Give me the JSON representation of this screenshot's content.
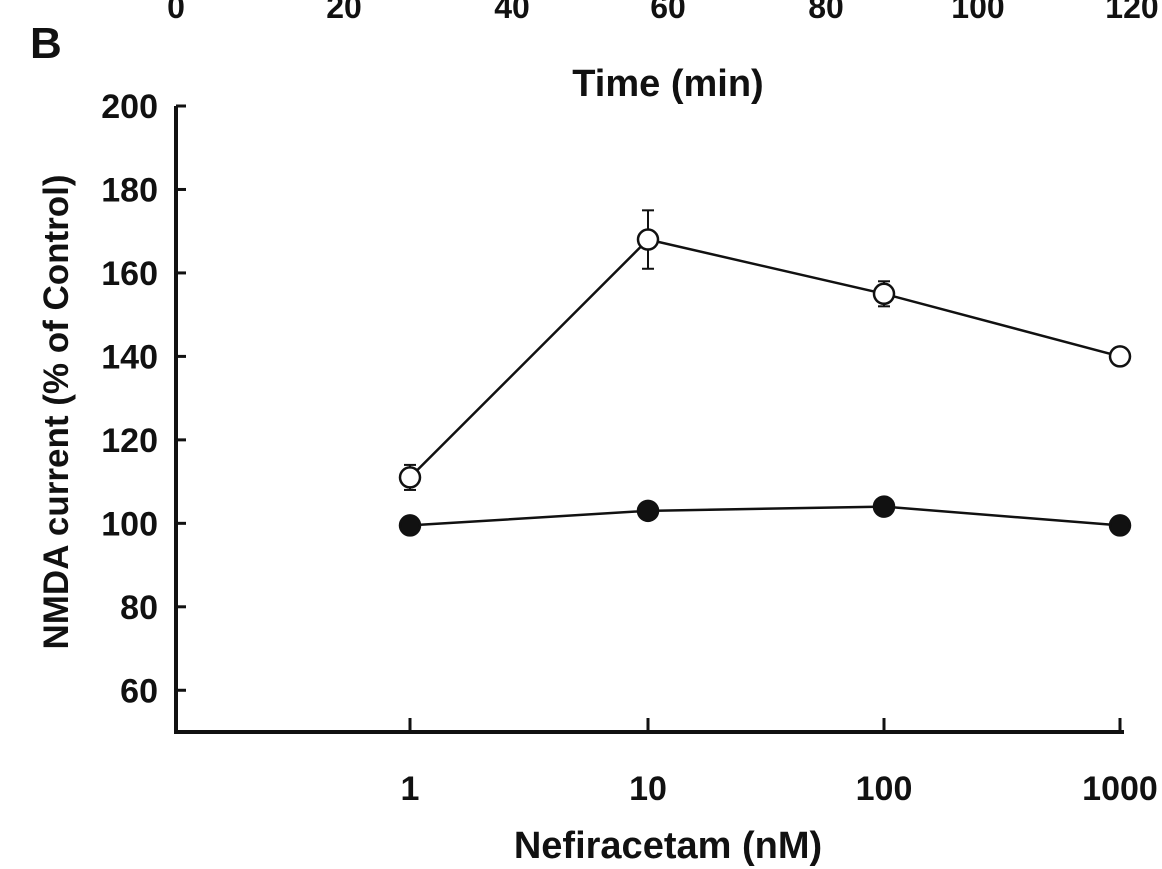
{
  "panel_label": "B",
  "top_axis": {
    "title": "Time (min)",
    "ticks": [
      "0",
      "20",
      "40",
      "60",
      "80",
      "100",
      "120"
    ]
  },
  "chart_data": {
    "type": "line",
    "ylabel": "NMDA current (% of Control)",
    "xlabel": "Nefiracetam (nM)",
    "x_scale": "log",
    "x": [
      1,
      10,
      100,
      1000
    ],
    "xtick_labels": [
      "1",
      "10",
      "100",
      "1000"
    ],
    "ylim": [
      50,
      200
    ],
    "yticks": [
      60,
      80,
      100,
      120,
      140,
      160,
      180,
      200
    ],
    "grid": false,
    "series": [
      {
        "marker": "open-circle",
        "values": [
          111,
          168,
          155,
          140
        ],
        "errors": [
          3,
          7,
          3,
          2
        ]
      },
      {
        "marker": "filled-circle",
        "values": [
          99.5,
          103,
          104,
          99.5
        ],
        "errors": [
          0,
          0,
          0,
          0
        ]
      }
    ],
    "colors": {
      "line": "#111111",
      "open_fill": "#ffffff",
      "filled_fill": "#111111"
    }
  }
}
